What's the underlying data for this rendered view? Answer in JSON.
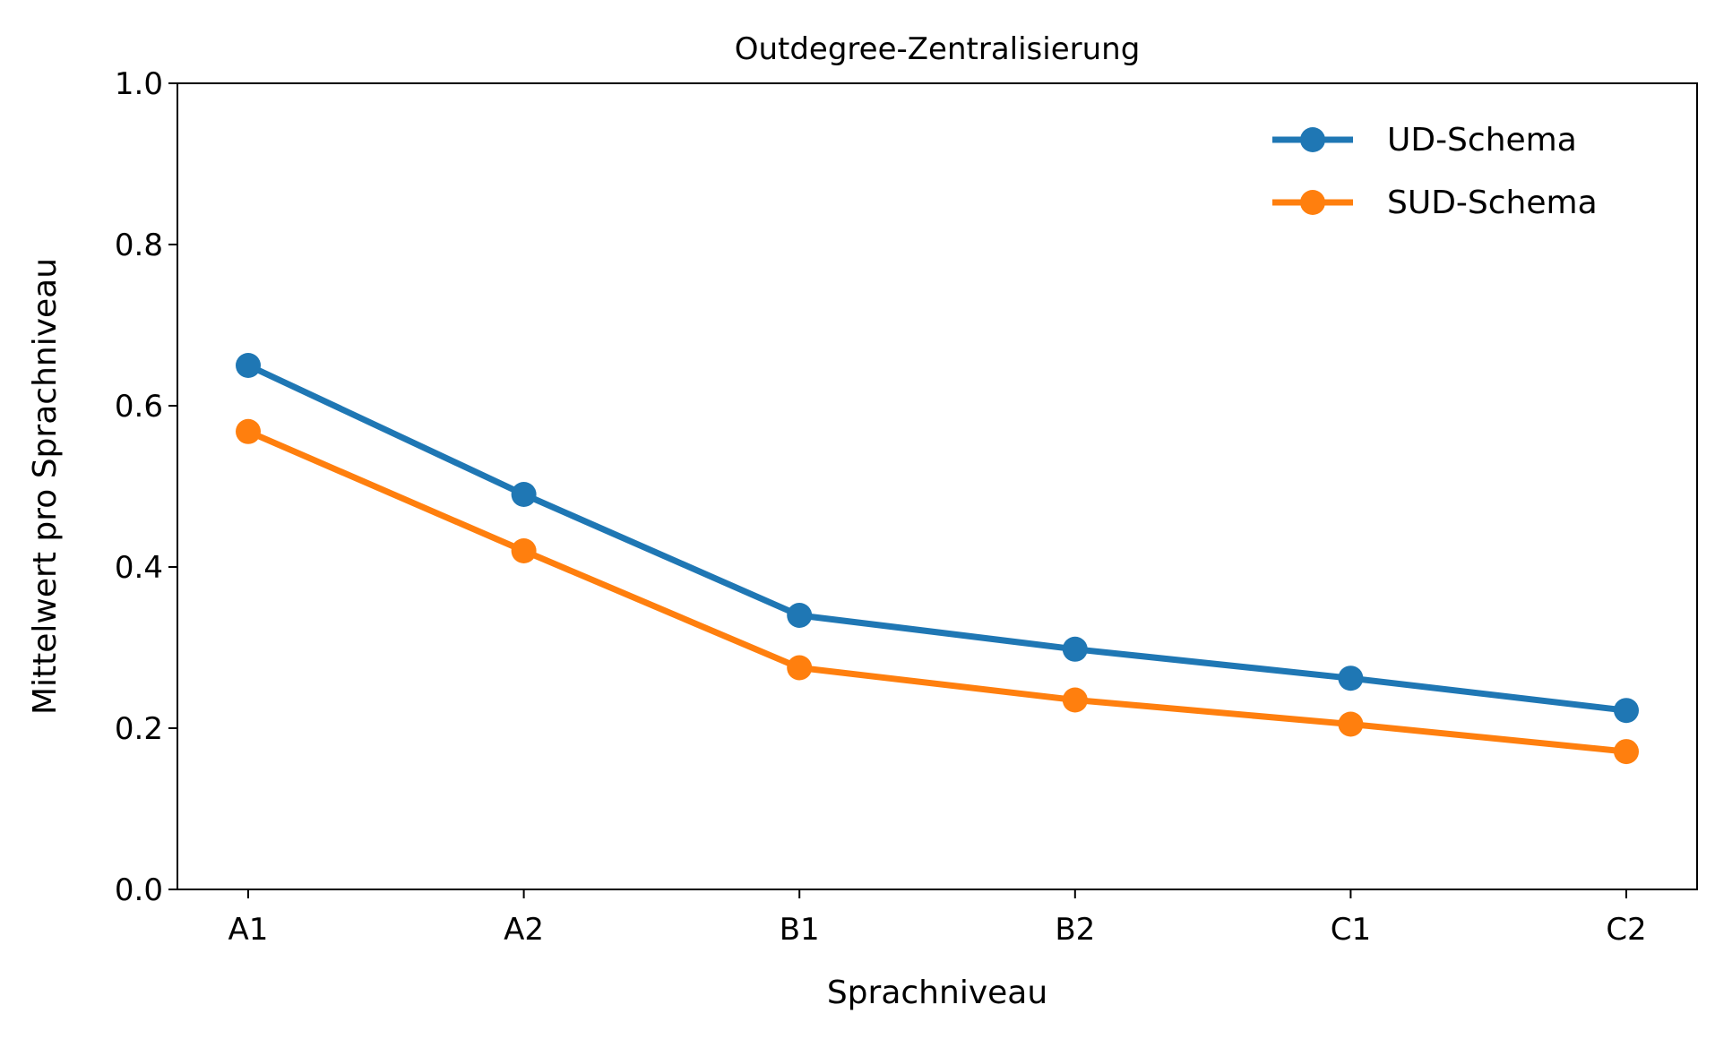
{
  "chart_data": {
    "type": "line",
    "title": "Outdegree-Zentralisierung",
    "xlabel": "Sprachniveau",
    "ylabel": "Mittelwert pro Sprachniveau",
    "categories": [
      "A1",
      "A2",
      "B1",
      "B2",
      "C1",
      "C2"
    ],
    "ylim": [
      0,
      1.0
    ],
    "yticks": [
      "0.0",
      "0.2",
      "0.4",
      "0.6",
      "0.8",
      "1.0"
    ],
    "grid": false,
    "legend_position": "top-right",
    "series": [
      {
        "name": "UD-Schema",
        "color": "#1f77b4",
        "values": [
          0.65,
          0.49,
          0.34,
          0.298,
          0.262,
          0.222
        ]
      },
      {
        "name": "SUD-Schema",
        "color": "#ff7f0e",
        "values": [
          0.568,
          0.42,
          0.275,
          0.235,
          0.205,
          0.171
        ]
      }
    ]
  }
}
